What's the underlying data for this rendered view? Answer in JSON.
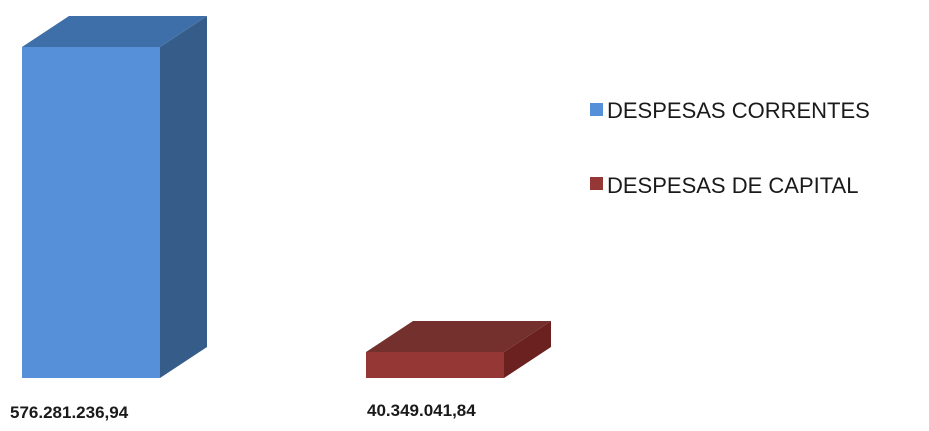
{
  "chart_data": {
    "type": "bar",
    "style": "3d-column",
    "categories": [
      "576.281.236,94",
      "40.349.041,84"
    ],
    "series": [
      {
        "name": "DESPESAS CORRENTES",
        "values": [
          576281236.94,
          0
        ],
        "color": "#5590d9"
      },
      {
        "name": "DESPESAS DE CAPITAL",
        "values": [
          0,
          40349041.84
        ],
        "color": "#953735"
      }
    ],
    "data_labels": [
      "576.281.236,94",
      "40.349.041,84"
    ],
    "title": "",
    "xlabel": "",
    "ylabel": "",
    "ylim": [
      0,
      576281236.94
    ],
    "grid": false,
    "legend_position": "right"
  },
  "colors": {
    "correntes_front": "#5590d9",
    "correntes_side": "#365c8a",
    "correntes_top": "#3f6fa8",
    "capital_front": "#953735",
    "capital_side": "#6b2120",
    "capital_top": "#74302c"
  }
}
